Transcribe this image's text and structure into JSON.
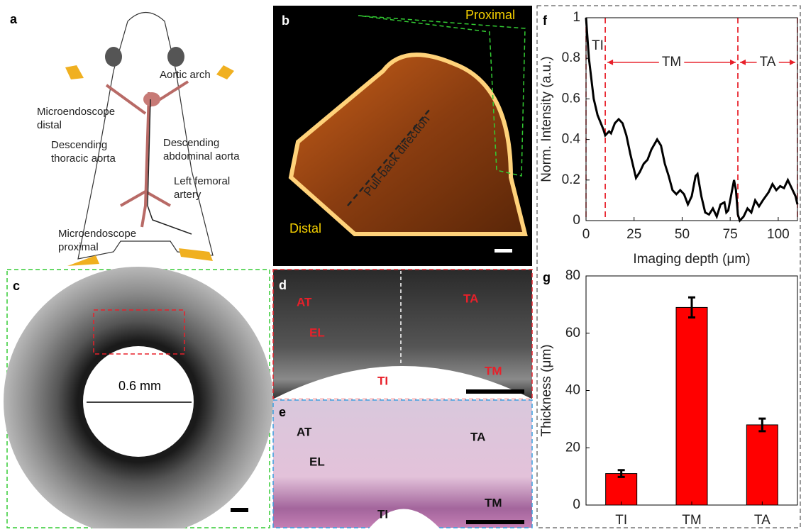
{
  "panel_labels": [
    "a",
    "b",
    "c",
    "d",
    "e",
    "f",
    "g"
  ],
  "panel_a": {
    "aortic_arch": "Aortic arch",
    "microendoscope_distal": [
      "Microendoscope",
      "distal"
    ],
    "descending_thoracic": [
      "Descending",
      "thoracic aorta"
    ],
    "descending_abdominal": [
      "Descending",
      "abdominal aorta"
    ],
    "left_femoral": [
      "Left femoral",
      "artery"
    ],
    "microendoscope_proximal": [
      "Microendoscope",
      "proximal"
    ]
  },
  "panel_b": {
    "proximal": "Proximal",
    "distal": "Distal",
    "direction": "Pull-back direction"
  },
  "panel_c": {
    "diameter": "0.6 mm"
  },
  "panel_d": {
    "at": "AT",
    "ta": "TA",
    "el": "EL",
    "ti": "TI",
    "tm": "TM"
  },
  "panel_e": {
    "at": "AT",
    "ta": "TA",
    "el": "EL",
    "ti": "TI",
    "tm": "TM"
  },
  "chart_data": [
    {
      "type": "line",
      "xlabel": "Imaging depth (μm)",
      "ylabel": "Norm. Intensity (a.u.)",
      "x": [
        0,
        1.5,
        4,
        6,
        9,
        10,
        12,
        13,
        15,
        17,
        19,
        21,
        23,
        25,
        26,
        28,
        30,
        32,
        34,
        37,
        39,
        41,
        43,
        45,
        47,
        49,
        51,
        53,
        55,
        57,
        58,
        60,
        62,
        64,
        66,
        68,
        70,
        72,
        73,
        74,
        76,
        77,
        78,
        79,
        80,
        82,
        84,
        86,
        88,
        90,
        92,
        95,
        97,
        99,
        101,
        103,
        105,
        107,
        109,
        110
      ],
      "values": [
        1,
        0.8,
        0.6,
        0.52,
        0.45,
        0.42,
        0.44,
        0.43,
        0.48,
        0.5,
        0.48,
        0.42,
        0.33,
        0.25,
        0.21,
        0.24,
        0.28,
        0.3,
        0.35,
        0.4,
        0.37,
        0.28,
        0.22,
        0.15,
        0.13,
        0.15,
        0.13,
        0.08,
        0.12,
        0.22,
        0.23,
        0.12,
        0.04,
        0.03,
        0.06,
        0.02,
        0.08,
        0.09,
        0.04,
        0.05,
        0.15,
        0.2,
        0.15,
        0.03,
        0,
        0.02,
        0.06,
        0.04,
        0.1,
        0.07,
        0.1,
        0.14,
        0.18,
        0.15,
        0.17,
        0.16,
        0.2,
        0.16,
        0.12,
        0.08
      ],
      "color": "#000000",
      "xlim": [
        0,
        110
      ],
      "xticks": [
        0,
        25,
        50,
        75,
        100
      ],
      "ylim": [
        0,
        1
      ],
      "yticks": [
        0,
        0.2,
        0.4,
        0.6,
        0.8,
        1
      ],
      "regions": [
        {
          "label": "TI",
          "start": 0,
          "end": 10
        },
        {
          "label": "TM",
          "start": 10,
          "end": 79
        },
        {
          "label": "TA",
          "start": 79,
          "end": 110
        }
      ],
      "region_color": "#e8202a"
    },
    {
      "type": "bar",
      "ylabel": "Thickness (μm)",
      "categories": [
        "TI",
        "TM",
        "TA"
      ],
      "values": [
        11,
        69,
        28
      ],
      "errors": [
        1.2,
        3.5,
        2.2
      ],
      "color": "#ff0000",
      "ylim": [
        0,
        80
      ],
      "yticks": [
        0,
        20,
        40,
        60,
        80
      ]
    }
  ]
}
